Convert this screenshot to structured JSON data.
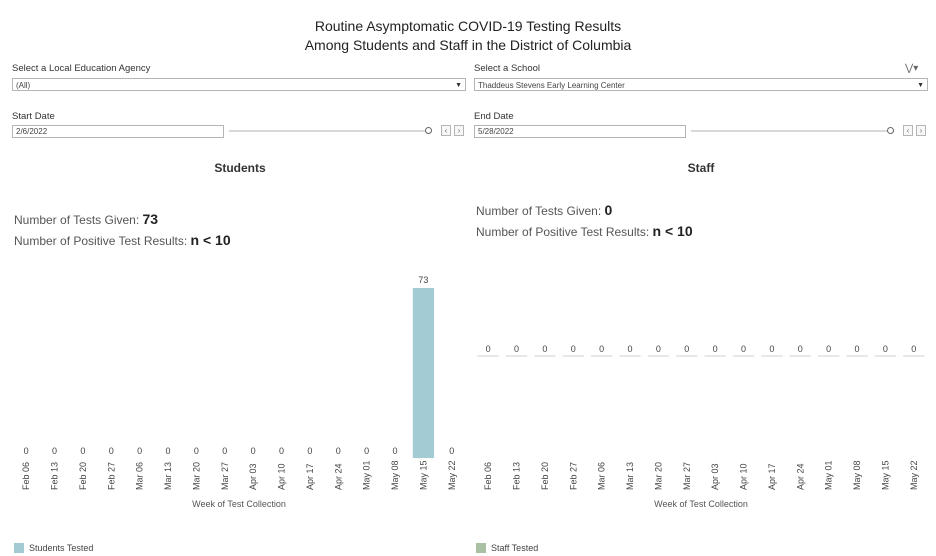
{
  "title_line1": "Routine Asymptomatic COVID-19 Testing Results",
  "title_line2": "Among Students and Staff in the District of Columbia",
  "filters": {
    "lea_label": "Select a Local Education Agency",
    "lea_value": "(All)",
    "school_label": "Select a School",
    "school_value": "Thaddeus Stevens Early Learning Center",
    "start_label": "Start Date",
    "start_value": "2/6/2022",
    "end_label": "End Date",
    "end_value": "5/28/2022"
  },
  "students": {
    "heading": "Students",
    "tests_label": "Number of Tests Given:",
    "tests_value": "73",
    "pos_label": "Number of Positive Test Results:",
    "pos_value": "n < 10",
    "legend": "Students Tested",
    "color": "#a2cbd4"
  },
  "staff": {
    "heading": "Staff",
    "tests_label": "Number of Tests Given:",
    "tests_value": "0",
    "pos_label": "Number of Positive Test Results:",
    "pos_value": "n < 10",
    "legend": "Staff Tested",
    "color": "#a9c1a2"
  },
  "chart_data": [
    {
      "type": "bar",
      "categories": [
        "Feb 06",
        "Feb 13",
        "Feb 20",
        "Feb 27",
        "Mar 06",
        "Mar 13",
        "Mar 20",
        "Mar 27",
        "Apr 03",
        "Apr 10",
        "Apr 17",
        "Apr 24",
        "May 01",
        "May 08",
        "May 15",
        "May 22"
      ],
      "values": [
        0,
        0,
        0,
        0,
        0,
        0,
        0,
        0,
        0,
        0,
        0,
        0,
        0,
        0,
        73,
        0
      ],
      "xlabel": "Week of Test Collection",
      "series": [
        {
          "name": "Students Tested",
          "values": [
            0,
            0,
            0,
            0,
            0,
            0,
            0,
            0,
            0,
            0,
            0,
            0,
            0,
            0,
            73,
            0
          ]
        }
      ],
      "ylim": [
        0,
        73
      ]
    },
    {
      "type": "bar",
      "categories": [
        "Feb 06",
        "Feb 13",
        "Feb 20",
        "Feb 27",
        "Mar 06",
        "Mar 13",
        "Mar 20",
        "Mar 27",
        "Apr 03",
        "Apr 10",
        "Apr 17",
        "Apr 24",
        "May 01",
        "May 08",
        "May 15",
        "May 22"
      ],
      "values": [
        0,
        0,
        0,
        0,
        0,
        0,
        0,
        0,
        0,
        0,
        0,
        0,
        0,
        0,
        0,
        0
      ],
      "xlabel": "Week of Test Collection",
      "series": [
        {
          "name": "Staff Tested",
          "values": [
            0,
            0,
            0,
            0,
            0,
            0,
            0,
            0,
            0,
            0,
            0,
            0,
            0,
            0,
            0,
            0
          ]
        }
      ]
    }
  ]
}
